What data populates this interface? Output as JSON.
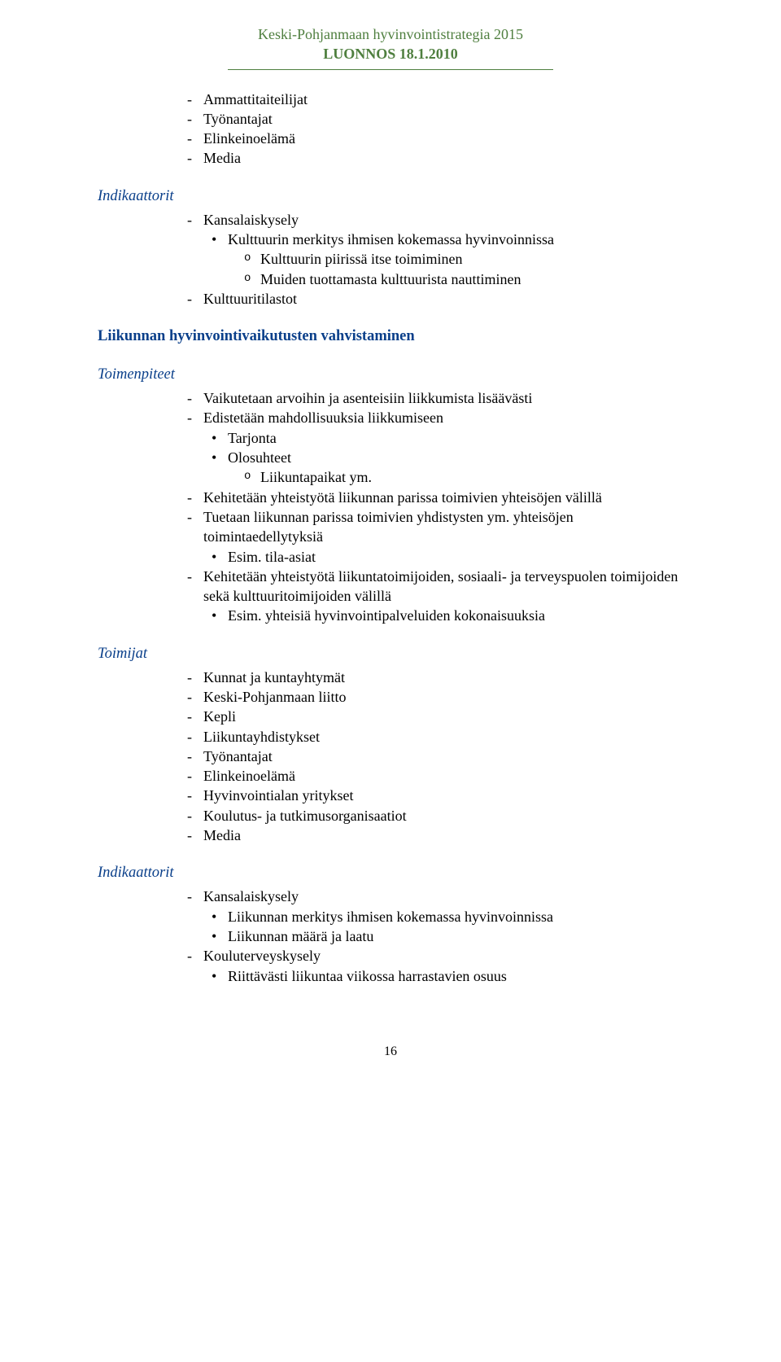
{
  "header": {
    "title": "Keski-Pohjanmaan hyvinvointistrategia 2015",
    "subtitle": "LUONNOS 18.1.2010"
  },
  "preDashTop": [
    "Ammattitaiteilijat",
    "Työnantajat",
    "Elinkeinoelämä",
    "Media"
  ],
  "indikaattorit1": {
    "heading": "Indikaattorit",
    "items": {
      "kansalaiskysely": "Kansalaiskysely",
      "bullet": "Kulttuurin merkitys ihmisen kokemassa hyvinvoinnissa",
      "sub1": "Kulttuurin piirissä itse toimiminen",
      "sub2": "Muiden tuottamasta kulttuurista nauttiminen",
      "kulttuuritilastot": "Kulttuuritilastot"
    }
  },
  "liikunnanHeading": "Liikunnan hyvinvointivaikutusten vahvistaminen",
  "toimenpiteet": {
    "heading": "Toimenpiteet",
    "d1": "Vaikutetaan arvoihin ja asenteisiin liikkumista lisäävästi",
    "d2": "Edistetään mahdollisuuksia liikkumiseen",
    "d2b1": "Tarjonta",
    "d2b2": "Olosuhteet",
    "d2b2o": "Liikuntapaikat ym.",
    "d3": "Kehitetään yhteistyötä liikunnan parissa toimivien yhteisöjen välillä",
    "d4": "Tuetaan liikunnan parissa toimivien yhdistysten ym. yhteisöjen toimintaedellytyksiä",
    "d4b": "Esim. tila-asiat",
    "d5": "Kehitetään yhteistyötä liikuntatoimijoiden, sosiaali- ja terveyspuolen toimijoiden sekä kulttuuritoimijoiden välillä",
    "d5b": "Esim. yhteisiä hyvinvointipalveluiden kokonaisuuksia"
  },
  "toimijat": {
    "heading": "Toimijat",
    "items": [
      "Kunnat ja kuntayhtymät",
      "Keski-Pohjanmaan liitto",
      "Kepli",
      "Liikuntayhdistykset",
      "Työnantajat",
      "Elinkeinoelämä",
      "Hyvinvointialan yritykset",
      "Koulutus- ja tutkimusorganisaatiot",
      "Media"
    ]
  },
  "indikaattorit2": {
    "heading": "Indikaattorit",
    "d1": "Kansalaiskysely",
    "d1b1": "Liikunnan merkitys ihmisen kokemassa hyvinvoinnissa",
    "d1b2": "Liikunnan määrä ja laatu",
    "d2": "Kouluterveyskysely",
    "d2b1": "Riittävästi liikuntaa viikossa harrastavien osuus"
  },
  "pageNumber": "16"
}
